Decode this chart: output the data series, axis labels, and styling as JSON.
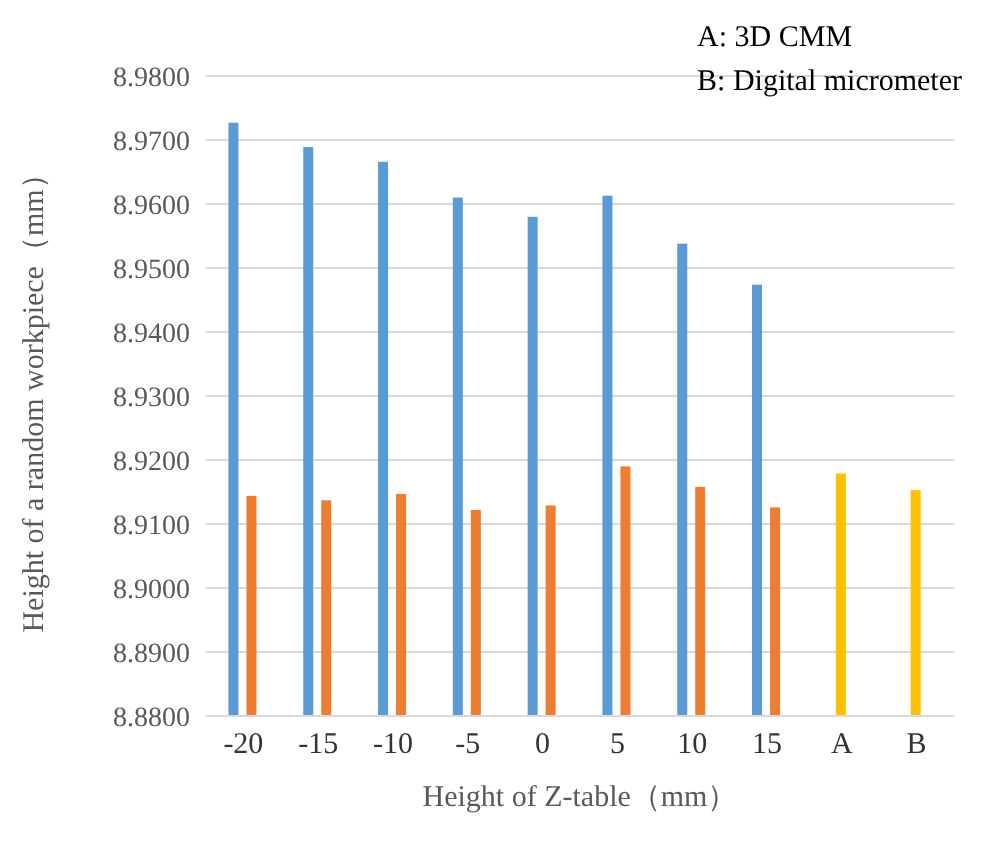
{
  "chart_data": {
    "type": "bar",
    "xlabel": "Height of Z-table（mm）",
    "ylabel": "Height of a random workpiece（mm）",
    "categories": [
      "-20",
      "-15",
      "-10",
      "-5",
      "0",
      "5",
      "10",
      "15",
      "A",
      "B"
    ],
    "series": [
      {
        "color": "#5b9bd5",
        "values": [
          8.9727,
          8.9689,
          8.9666,
          8.961,
          8.958,
          8.9613,
          8.9538,
          8.9474,
          null,
          null
        ]
      },
      {
        "color": "#ed7d31",
        "colors": [
          "#ed7d31",
          "#ed7d31",
          "#ed7d31",
          "#ed7d31",
          "#ed7d31",
          "#ed7d31",
          "#ed7d31",
          "#ed7d31",
          "#ffc000",
          "#ffc000"
        ],
        "values": [
          8.9144,
          8.9137,
          8.9147,
          8.9122,
          8.9129,
          8.919,
          8.9158,
          8.9126,
          8.9179,
          8.9153
        ]
      }
    ],
    "ylim": [
      8.88,
      8.98
    ],
    "yticks": [
      {
        "value": 8.88,
        "label": "8.8800"
      },
      {
        "value": 8.89,
        "label": "8.8900"
      },
      {
        "value": 8.9,
        "label": "8.9000"
      },
      {
        "value": 8.91,
        "label": "8.9100"
      },
      {
        "value": 8.92,
        "label": "8.9200"
      },
      {
        "value": 8.93,
        "label": "8.9300"
      },
      {
        "value": 8.94,
        "label": "8.9400"
      },
      {
        "value": 8.95,
        "label": "8.9500"
      },
      {
        "value": 8.96,
        "label": "8.9600"
      },
      {
        "value": 8.97,
        "label": "8.9700"
      },
      {
        "value": 8.98,
        "label": "8.9800"
      }
    ],
    "grid": "y",
    "annotations": [
      "A: 3D CMM",
      "B: Digital micrometer"
    ]
  }
}
